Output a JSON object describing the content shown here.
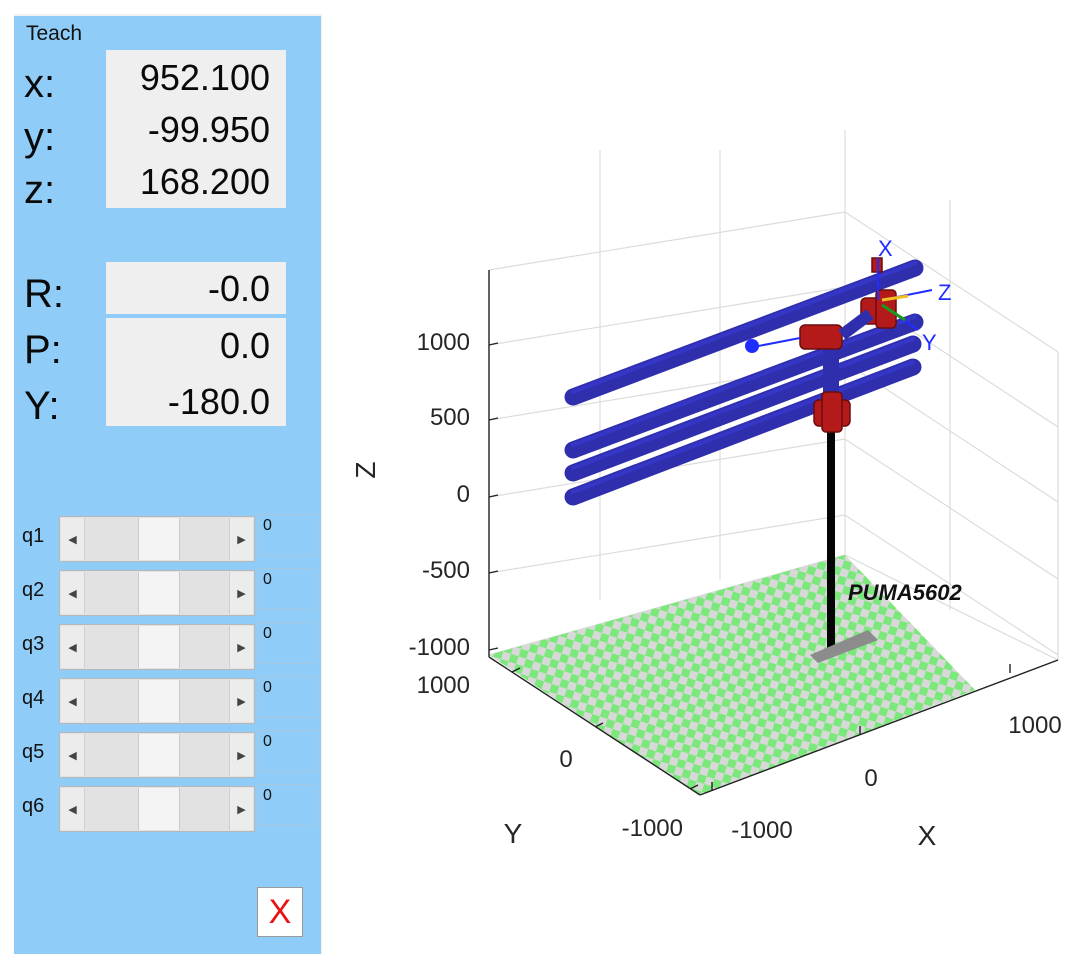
{
  "teach_panel": {
    "title": "Teach",
    "position": [
      {
        "label": "x:",
        "value": "952.100"
      },
      {
        "label": "y:",
        "value": "-99.950"
      },
      {
        "label": "z:",
        "value": "168.200"
      }
    ],
    "orientation": [
      {
        "label": "R:",
        "value": "-0.0"
      },
      {
        "label": "P:",
        "value": "0.0"
      },
      {
        "label": "Y:",
        "value": "-180.0"
      }
    ],
    "joints": [
      {
        "label": "q1",
        "value": "0"
      },
      {
        "label": "q2",
        "value": "0"
      },
      {
        "label": "q3",
        "value": "0"
      },
      {
        "label": "q4",
        "value": "0"
      },
      {
        "label": "q5",
        "value": "0"
      },
      {
        "label": "q6",
        "value": "0"
      }
    ],
    "close_label": "X"
  },
  "plot": {
    "robot_name": "PUMA5602",
    "axis_labels": {
      "x": "X",
      "y": "Y",
      "z": "Z"
    },
    "z_ticks": [
      "1000",
      "500",
      "0",
      "-500",
      "-1000"
    ],
    "x_ticks": [
      "-1000",
      "0",
      "1000"
    ],
    "y_ticks": [
      "-1000",
      "0",
      "1000"
    ],
    "frame_labels": {
      "x": "X",
      "y": "Y",
      "z": "Z"
    },
    "colors": {
      "link": "#2f2fae",
      "joint": "#b41a1a",
      "floor_a": "#7ae87a",
      "floor_b": "#d8d8d8",
      "pedestal": "#050505",
      "frame": "#1f2dff"
    }
  }
}
